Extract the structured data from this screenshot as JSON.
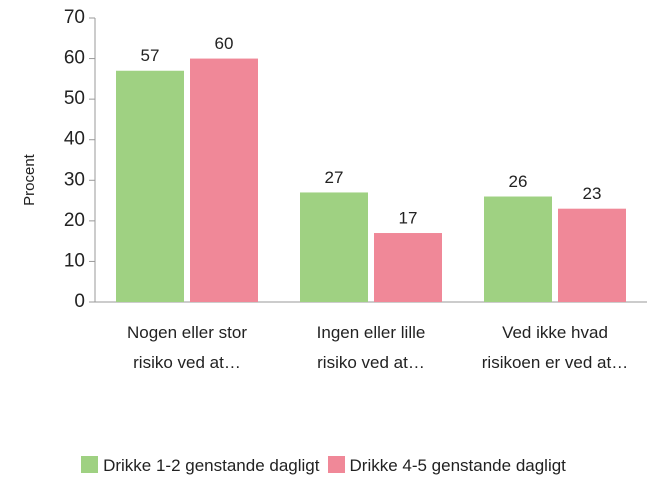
{
  "chart_data": {
    "type": "bar",
    "y_label": "Procent",
    "categories": [
      "Nogen eller stor risiko ved at…",
      "Ingen eller lille risiko ved at…",
      "Ved ikke hvad risikoen er ved at…"
    ],
    "series": [
      {
        "name": "Drikke 1-2 genstande dagligt",
        "color": "#9fd182",
        "values": [
          57,
          27,
          26
        ]
      },
      {
        "name": "Drikke 4-5 genstande dagligt",
        "color": "#f08898",
        "values": [
          60,
          17,
          23
        ]
      }
    ],
    "ylim": [
      0,
      70
    ],
    "yticks": [
      0,
      10,
      20,
      30,
      40,
      50,
      60,
      70
    ],
    "legend": "bottom"
  }
}
